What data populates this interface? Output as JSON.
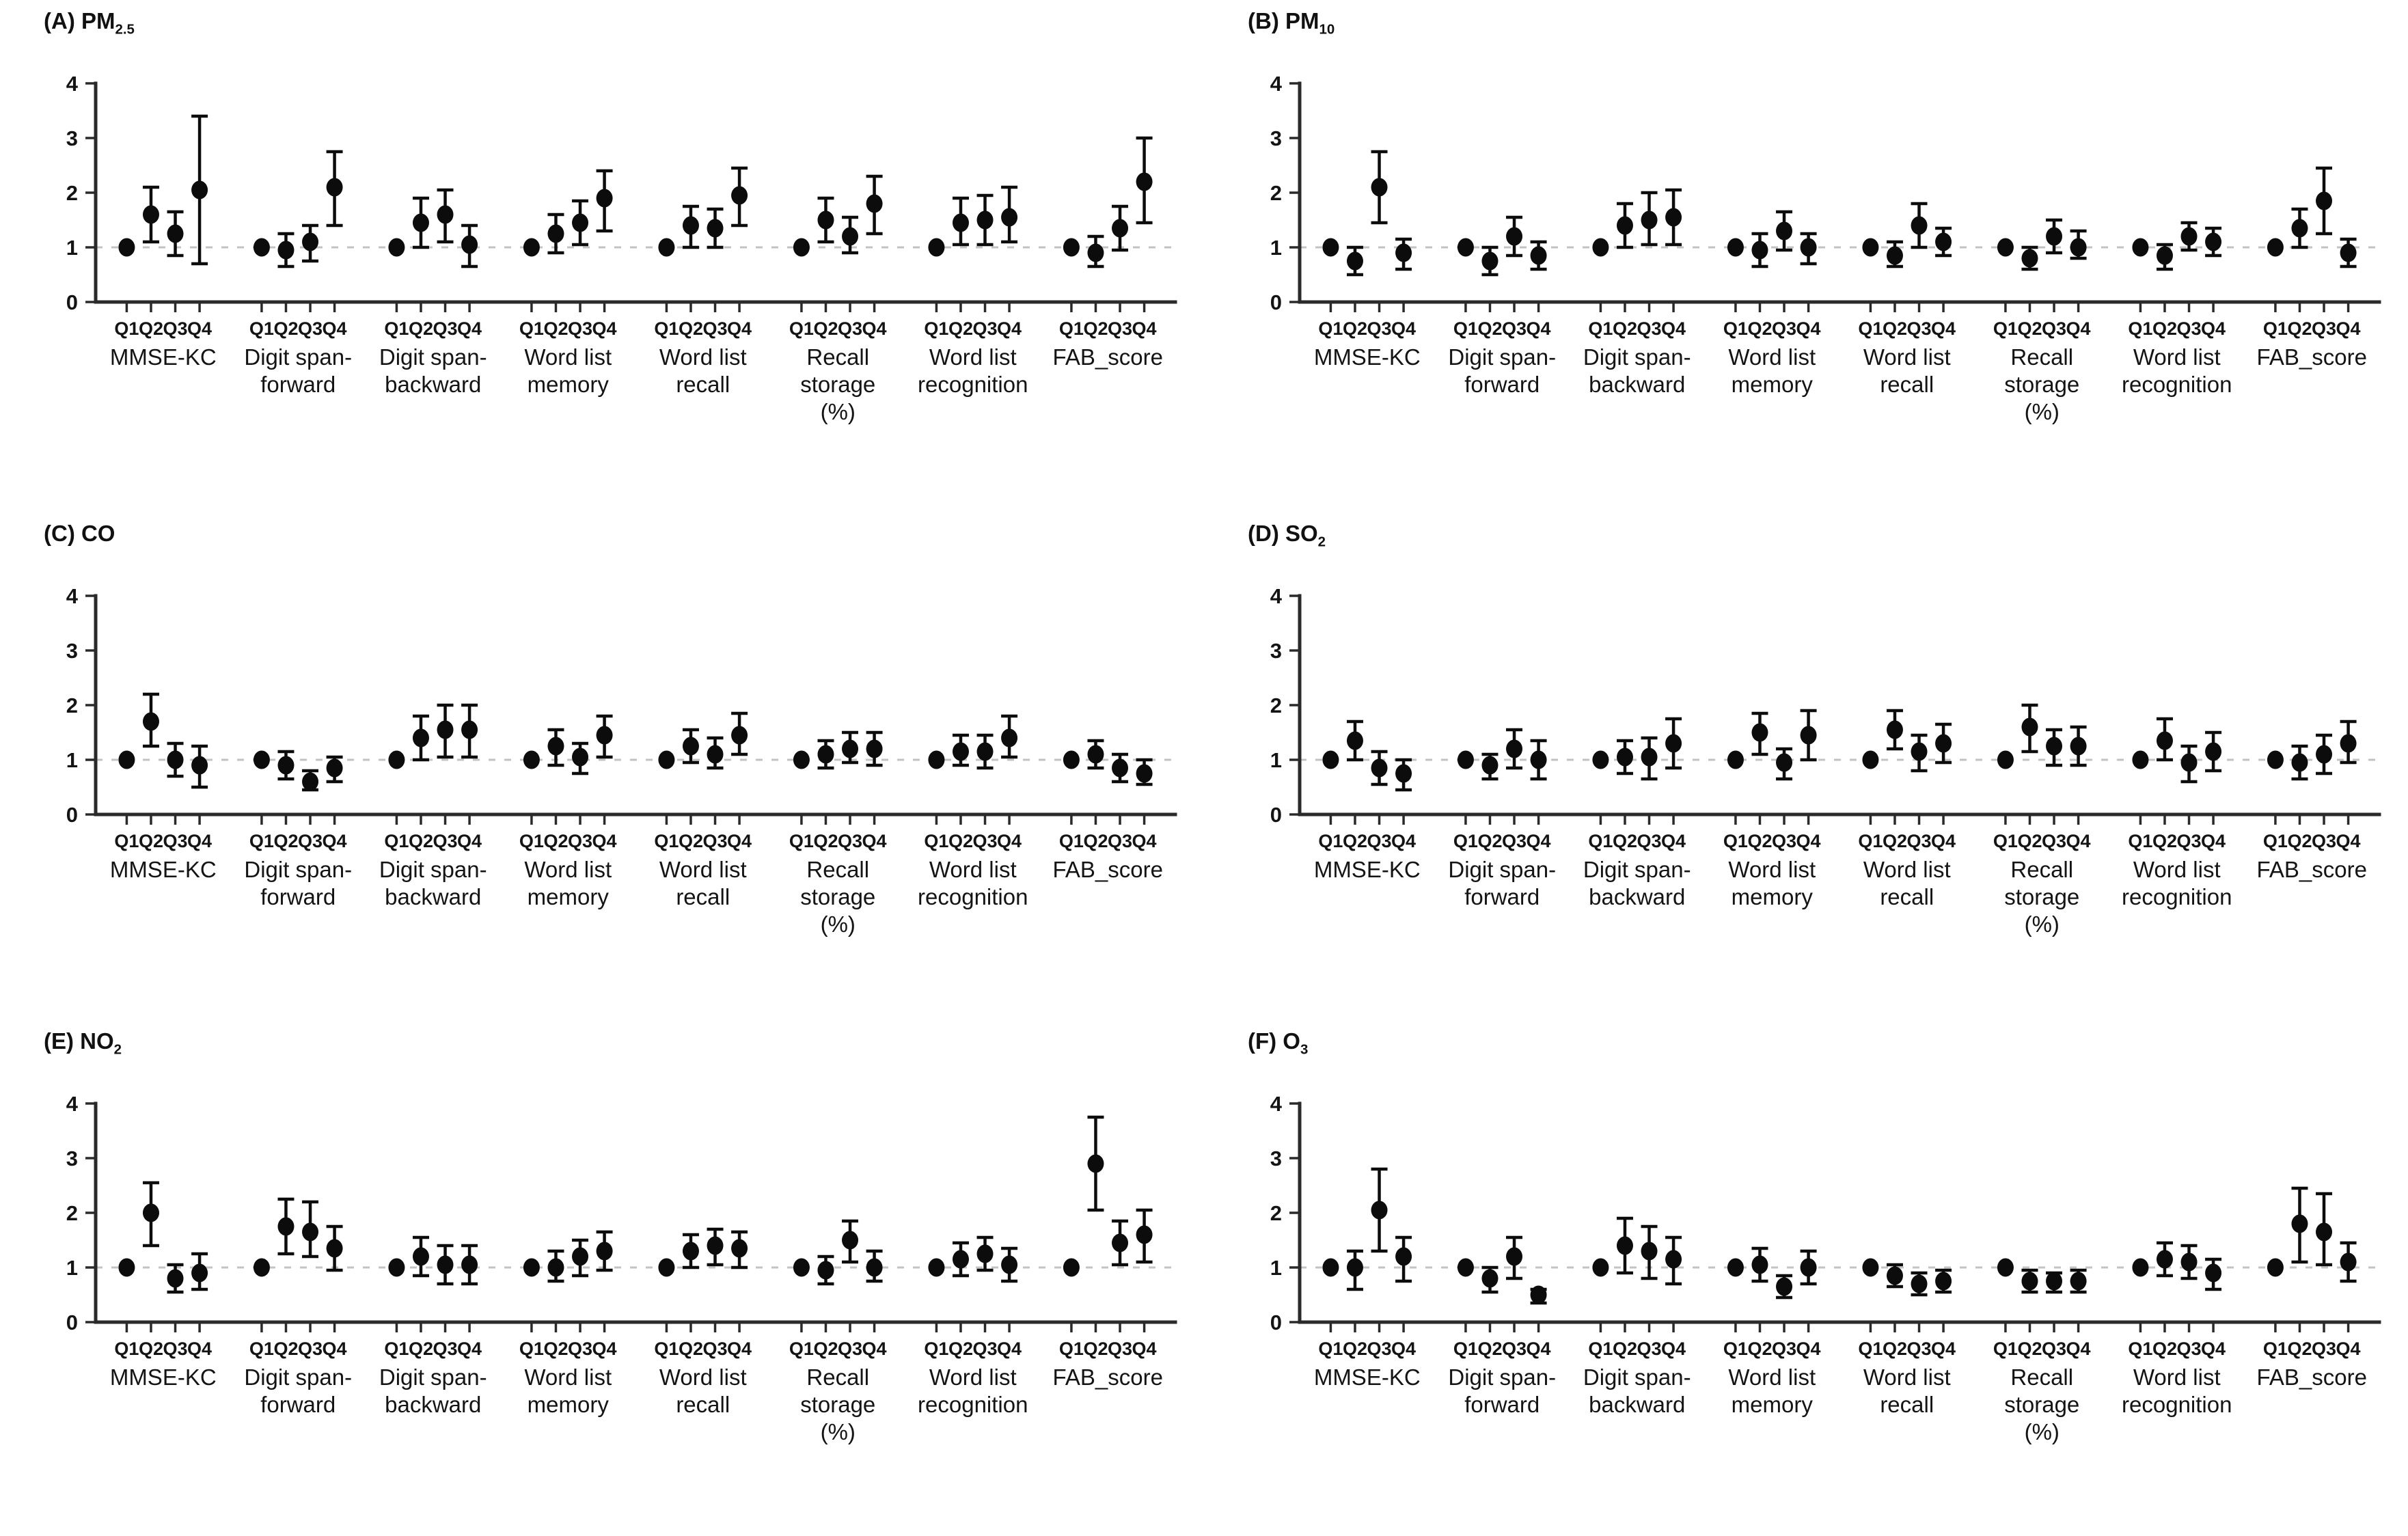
{
  "figure": {
    "quartile_labels": [
      "Q1",
      "Q2",
      "Q3",
      "Q4"
    ],
    "group_labels": [
      [
        "MMSE-KC"
      ],
      [
        "Digit span-",
        "forward"
      ],
      [
        "Digit span-",
        "backward"
      ],
      [
        "Word list",
        "memory"
      ],
      [
        "Word list",
        "recall"
      ],
      [
        "Recall",
        "storage",
        "(%)"
      ],
      [
        "Word list",
        "recognition"
      ],
      [
        "FAB_score"
      ]
    ],
    "y_ticks": [
      0,
      1,
      2,
      3,
      4
    ],
    "ylim": [
      0,
      4
    ],
    "reference_line": 1,
    "colors": {
      "point": "#0c0c0c",
      "axis": "#2a2a2a",
      "reference_dash": "#c3c3c3",
      "text": "#141414",
      "background": "#ffffff"
    }
  },
  "chart_data": [
    {
      "type": "scatter",
      "panel": "A",
      "title_prefix": "(A) PM",
      "title_sub": "2.5",
      "pollutant": "PM2.5",
      "groups": [
        {
          "name": "MMSE-KC",
          "values": [
            1.0,
            1.6,
            1.25,
            2.05
          ],
          "ci_low": [
            null,
            1.1,
            0.85,
            0.7
          ],
          "ci_high": [
            null,
            2.1,
            1.65,
            3.4
          ]
        },
        {
          "name": "Digit span-forward",
          "values": [
            1.0,
            0.95,
            1.1,
            2.1
          ],
          "ci_low": [
            null,
            0.65,
            0.75,
            1.4
          ],
          "ci_high": [
            null,
            1.25,
            1.4,
            2.75
          ]
        },
        {
          "name": "Digit span-backward",
          "values": [
            1.0,
            1.45,
            1.6,
            1.05
          ],
          "ci_low": [
            null,
            1.0,
            1.1,
            0.65
          ],
          "ci_high": [
            null,
            1.9,
            2.05,
            1.4
          ]
        },
        {
          "name": "Word list memory",
          "values": [
            1.0,
            1.25,
            1.45,
            1.9
          ],
          "ci_low": [
            null,
            0.9,
            1.05,
            1.3
          ],
          "ci_high": [
            null,
            1.6,
            1.85,
            2.4
          ]
        },
        {
          "name": "Word list recall",
          "values": [
            1.0,
            1.4,
            1.35,
            1.95
          ],
          "ci_low": [
            null,
            1.0,
            1.0,
            1.4
          ],
          "ci_high": [
            null,
            1.75,
            1.7,
            2.45
          ]
        },
        {
          "name": "Recall storage (%)",
          "values": [
            1.0,
            1.5,
            1.2,
            1.8
          ],
          "ci_low": [
            null,
            1.1,
            0.9,
            1.25
          ],
          "ci_high": [
            null,
            1.9,
            1.55,
            2.3
          ]
        },
        {
          "name": "Word list recognition",
          "values": [
            1.0,
            1.45,
            1.5,
            1.55
          ],
          "ci_low": [
            null,
            1.05,
            1.05,
            1.1
          ],
          "ci_high": [
            null,
            1.9,
            1.95,
            2.1
          ]
        },
        {
          "name": "FAB_score",
          "values": [
            1.0,
            0.9,
            1.35,
            2.2
          ],
          "ci_low": [
            null,
            0.65,
            0.95,
            1.45
          ],
          "ci_high": [
            null,
            1.2,
            1.75,
            3.0
          ]
        }
      ]
    },
    {
      "type": "scatter",
      "panel": "B",
      "title_prefix": "(B) PM",
      "title_sub": "10",
      "pollutant": "PM10",
      "groups": [
        {
          "name": "MMSE-KC",
          "values": [
            1.0,
            0.75,
            2.1,
            0.9
          ],
          "ci_low": [
            null,
            0.5,
            1.45,
            0.6
          ],
          "ci_high": [
            null,
            1.0,
            2.75,
            1.15
          ]
        },
        {
          "name": "Digit span-forward",
          "values": [
            1.0,
            0.75,
            1.2,
            0.85
          ],
          "ci_low": [
            null,
            0.5,
            0.85,
            0.6
          ],
          "ci_high": [
            null,
            1.0,
            1.55,
            1.1
          ]
        },
        {
          "name": "Digit span-backward",
          "values": [
            1.0,
            1.4,
            1.5,
            1.55
          ],
          "ci_low": [
            null,
            1.0,
            1.05,
            1.05
          ],
          "ci_high": [
            null,
            1.8,
            2.0,
            2.05
          ]
        },
        {
          "name": "Word list memory",
          "values": [
            1.0,
            0.95,
            1.3,
            1.0
          ],
          "ci_low": [
            null,
            0.65,
            0.95,
            0.7
          ],
          "ci_high": [
            null,
            1.25,
            1.65,
            1.25
          ]
        },
        {
          "name": "Word list recall",
          "values": [
            1.0,
            0.85,
            1.4,
            1.1
          ],
          "ci_low": [
            null,
            0.65,
            1.0,
            0.85
          ],
          "ci_high": [
            null,
            1.1,
            1.8,
            1.35
          ]
        },
        {
          "name": "Recall storage (%)",
          "values": [
            1.0,
            0.8,
            1.2,
            1.0
          ],
          "ci_low": [
            null,
            0.6,
            0.9,
            0.8
          ],
          "ci_high": [
            null,
            1.0,
            1.5,
            1.3
          ]
        },
        {
          "name": "Word list recognition",
          "values": [
            1.0,
            0.85,
            1.2,
            1.1
          ],
          "ci_low": [
            null,
            0.6,
            0.95,
            0.85
          ],
          "ci_high": [
            null,
            1.05,
            1.45,
            1.35
          ]
        },
        {
          "name": "FAB_score",
          "values": [
            1.0,
            1.35,
            1.85,
            0.9
          ],
          "ci_low": [
            null,
            1.0,
            1.25,
            0.65
          ],
          "ci_high": [
            null,
            1.7,
            2.45,
            1.15
          ]
        }
      ]
    },
    {
      "type": "scatter",
      "panel": "C",
      "title_prefix": "(C) CO",
      "title_sub": "",
      "pollutant": "CO",
      "groups": [
        {
          "name": "MMSE-KC",
          "values": [
            1.0,
            1.7,
            1.0,
            0.9
          ],
          "ci_low": [
            null,
            1.25,
            0.7,
            0.5
          ],
          "ci_high": [
            null,
            2.2,
            1.3,
            1.25
          ]
        },
        {
          "name": "Digit span-forward",
          "values": [
            1.0,
            0.9,
            0.6,
            0.85
          ],
          "ci_low": [
            null,
            0.65,
            0.45,
            0.6
          ],
          "ci_high": [
            null,
            1.15,
            0.8,
            1.05
          ]
        },
        {
          "name": "Digit span-backward",
          "values": [
            1.0,
            1.4,
            1.55,
            1.55
          ],
          "ci_low": [
            null,
            1.0,
            1.05,
            1.05
          ],
          "ci_high": [
            null,
            1.8,
            2.0,
            2.0
          ]
        },
        {
          "name": "Word list memory",
          "values": [
            1.0,
            1.25,
            1.05,
            1.45
          ],
          "ci_low": [
            null,
            0.9,
            0.75,
            1.05
          ],
          "ci_high": [
            null,
            1.55,
            1.3,
            1.8
          ]
        },
        {
          "name": "Word list recall",
          "values": [
            1.0,
            1.25,
            1.1,
            1.45
          ],
          "ci_low": [
            null,
            0.95,
            0.85,
            1.1
          ],
          "ci_high": [
            null,
            1.55,
            1.4,
            1.85
          ]
        },
        {
          "name": "Recall storage (%)",
          "values": [
            1.0,
            1.1,
            1.2,
            1.2
          ],
          "ci_low": [
            null,
            0.85,
            0.95,
            0.9
          ],
          "ci_high": [
            null,
            1.35,
            1.5,
            1.5
          ]
        },
        {
          "name": "Word list recognition",
          "values": [
            1.0,
            1.15,
            1.15,
            1.4
          ],
          "ci_low": [
            null,
            0.9,
            0.85,
            1.05
          ],
          "ci_high": [
            null,
            1.45,
            1.45,
            1.8
          ]
        },
        {
          "name": "FAB_score",
          "values": [
            1.0,
            1.1,
            0.85,
            0.75
          ],
          "ci_low": [
            null,
            0.85,
            0.6,
            0.55
          ],
          "ci_high": [
            null,
            1.35,
            1.1,
            1.0
          ]
        }
      ]
    },
    {
      "type": "scatter",
      "panel": "D",
      "title_prefix": "(D) SO",
      "title_sub": "2",
      "pollutant": "SO2",
      "groups": [
        {
          "name": "MMSE-KC",
          "values": [
            1.0,
            1.35,
            0.85,
            0.75
          ],
          "ci_low": [
            null,
            1.0,
            0.55,
            0.45
          ],
          "ci_high": [
            null,
            1.7,
            1.15,
            1.0
          ]
        },
        {
          "name": "Digit span-forward",
          "values": [
            1.0,
            0.9,
            1.2,
            1.0
          ],
          "ci_low": [
            null,
            0.65,
            0.85,
            0.65
          ],
          "ci_high": [
            null,
            1.1,
            1.55,
            1.35
          ]
        },
        {
          "name": "Digit span-backward",
          "values": [
            1.0,
            1.05,
            1.05,
            1.3
          ],
          "ci_low": [
            null,
            0.75,
            0.65,
            0.85
          ],
          "ci_high": [
            null,
            1.35,
            1.4,
            1.75
          ]
        },
        {
          "name": "Word list memory",
          "values": [
            1.0,
            1.5,
            0.95,
            1.45
          ],
          "ci_low": [
            null,
            1.1,
            0.65,
            1.0
          ],
          "ci_high": [
            null,
            1.85,
            1.2,
            1.9
          ]
        },
        {
          "name": "Word list recall",
          "values": [
            1.0,
            1.55,
            1.15,
            1.3
          ],
          "ci_low": [
            null,
            1.2,
            0.8,
            0.95
          ],
          "ci_high": [
            null,
            1.9,
            1.45,
            1.65
          ]
        },
        {
          "name": "Recall storage (%)",
          "values": [
            1.0,
            1.6,
            1.25,
            1.25
          ],
          "ci_low": [
            null,
            1.15,
            0.9,
            0.9
          ],
          "ci_high": [
            null,
            2.0,
            1.55,
            1.6
          ]
        },
        {
          "name": "Word list recognition",
          "values": [
            1.0,
            1.35,
            0.95,
            1.15
          ],
          "ci_low": [
            null,
            1.0,
            0.6,
            0.8
          ],
          "ci_high": [
            null,
            1.75,
            1.25,
            1.5
          ]
        },
        {
          "name": "FAB_score",
          "values": [
            1.0,
            0.95,
            1.1,
            1.3
          ],
          "ci_low": [
            null,
            0.65,
            0.75,
            0.95
          ],
          "ci_high": [
            null,
            1.25,
            1.45,
            1.7
          ]
        }
      ]
    },
    {
      "type": "scatter",
      "panel": "E",
      "title_prefix": "(E) NO",
      "title_sub": "2",
      "pollutant": "NO2",
      "groups": [
        {
          "name": "MMSE-KC",
          "values": [
            1.0,
            2.0,
            0.8,
            0.9
          ],
          "ci_low": [
            null,
            1.4,
            0.55,
            0.6
          ],
          "ci_high": [
            null,
            2.55,
            1.05,
            1.25
          ]
        },
        {
          "name": "Digit span-forward",
          "values": [
            1.0,
            1.75,
            1.65,
            1.35
          ],
          "ci_low": [
            null,
            1.25,
            1.2,
            0.95
          ],
          "ci_high": [
            null,
            2.25,
            2.2,
            1.75
          ]
        },
        {
          "name": "Digit span-backward",
          "values": [
            1.0,
            1.2,
            1.05,
            1.05
          ],
          "ci_low": [
            null,
            0.85,
            0.7,
            0.7
          ],
          "ci_high": [
            null,
            1.55,
            1.4,
            1.4
          ]
        },
        {
          "name": "Word list memory",
          "values": [
            1.0,
            1.0,
            1.2,
            1.3
          ],
          "ci_low": [
            null,
            0.75,
            0.85,
            0.95
          ],
          "ci_high": [
            null,
            1.3,
            1.5,
            1.65
          ]
        },
        {
          "name": "Word list recall",
          "values": [
            1.0,
            1.3,
            1.4,
            1.35
          ],
          "ci_low": [
            null,
            1.0,
            1.05,
            1.0
          ],
          "ci_high": [
            null,
            1.6,
            1.7,
            1.65
          ]
        },
        {
          "name": "Recall storage (%)",
          "values": [
            1.0,
            0.95,
            1.5,
            1.0
          ],
          "ci_low": [
            null,
            0.7,
            1.1,
            0.75
          ],
          "ci_high": [
            null,
            1.2,
            1.85,
            1.3
          ]
        },
        {
          "name": "Word list recognition",
          "values": [
            1.0,
            1.15,
            1.25,
            1.05
          ],
          "ci_low": [
            null,
            0.85,
            0.95,
            0.75
          ],
          "ci_high": [
            null,
            1.45,
            1.55,
            1.35
          ]
        },
        {
          "name": "FAB_score",
          "values": [
            1.0,
            2.9,
            1.45,
            1.6
          ],
          "ci_low": [
            null,
            2.05,
            1.05,
            1.1
          ],
          "ci_high": [
            null,
            3.75,
            1.85,
            2.05
          ]
        }
      ]
    },
    {
      "type": "scatter",
      "panel": "F",
      "title_prefix": "(F) O",
      "title_sub": "3",
      "pollutant": "O3",
      "groups": [
        {
          "name": "MMSE-KC",
          "values": [
            1.0,
            1.0,
            2.05,
            1.2
          ],
          "ci_low": [
            null,
            0.6,
            1.3,
            0.75
          ],
          "ci_high": [
            null,
            1.3,
            2.8,
            1.55
          ]
        },
        {
          "name": "Digit span-forward",
          "values": [
            1.0,
            0.8,
            1.2,
            0.5
          ],
          "ci_low": [
            null,
            0.55,
            0.8,
            0.35
          ],
          "ci_high": [
            null,
            1.0,
            1.55,
            0.6
          ]
        },
        {
          "name": "Digit span-backward",
          "values": [
            1.0,
            1.4,
            1.3,
            1.15
          ],
          "ci_low": [
            null,
            0.9,
            0.8,
            0.7
          ],
          "ci_high": [
            null,
            1.9,
            1.75,
            1.55
          ]
        },
        {
          "name": "Word list memory",
          "values": [
            1.0,
            1.05,
            0.65,
            1.0
          ],
          "ci_low": [
            null,
            0.75,
            0.45,
            0.7
          ],
          "ci_high": [
            null,
            1.35,
            0.85,
            1.3
          ]
        },
        {
          "name": "Word list recall",
          "values": [
            1.0,
            0.85,
            0.7,
            0.75
          ],
          "ci_low": [
            null,
            0.65,
            0.5,
            0.55
          ],
          "ci_high": [
            null,
            1.05,
            0.9,
            0.95
          ]
        },
        {
          "name": "Recall storage (%)",
          "values": [
            1.0,
            0.75,
            0.75,
            0.75
          ],
          "ci_low": [
            null,
            0.55,
            0.55,
            0.55
          ],
          "ci_high": [
            null,
            0.95,
            0.9,
            0.95
          ]
        },
        {
          "name": "Word list recognition",
          "values": [
            1.0,
            1.15,
            1.1,
            0.9
          ],
          "ci_low": [
            null,
            0.85,
            0.8,
            0.6
          ],
          "ci_high": [
            null,
            1.45,
            1.4,
            1.15
          ]
        },
        {
          "name": "FAB_score",
          "values": [
            1.0,
            1.8,
            1.65,
            1.1
          ],
          "ci_low": [
            null,
            1.1,
            1.05,
            0.75
          ],
          "ci_high": [
            null,
            2.45,
            2.35,
            1.45
          ]
        }
      ]
    }
  ]
}
